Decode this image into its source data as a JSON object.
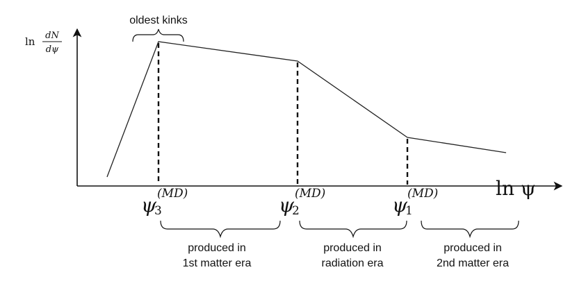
{
  "y_axis_label": {
    "ln": "ln",
    "numerator": "dN",
    "denominator": "dψ"
  },
  "x_axis_label": "ln ψ",
  "top_annotation": "oldest kinks",
  "thresholds": [
    {
      "base": "ψ",
      "subscript": "3",
      "superscript": "(MD)"
    },
    {
      "base": "ψ",
      "subscript": "2",
      "superscript": "(MD)"
    },
    {
      "base": "ψ",
      "subscript": "1",
      "superscript": "(MD)"
    }
  ],
  "eras": [
    {
      "line1": "produced in",
      "line2": "1st matter era"
    },
    {
      "line1": "produced in",
      "line2": "radiation era"
    },
    {
      "line1": "produced in",
      "line2": "2nd matter era"
    }
  ]
}
